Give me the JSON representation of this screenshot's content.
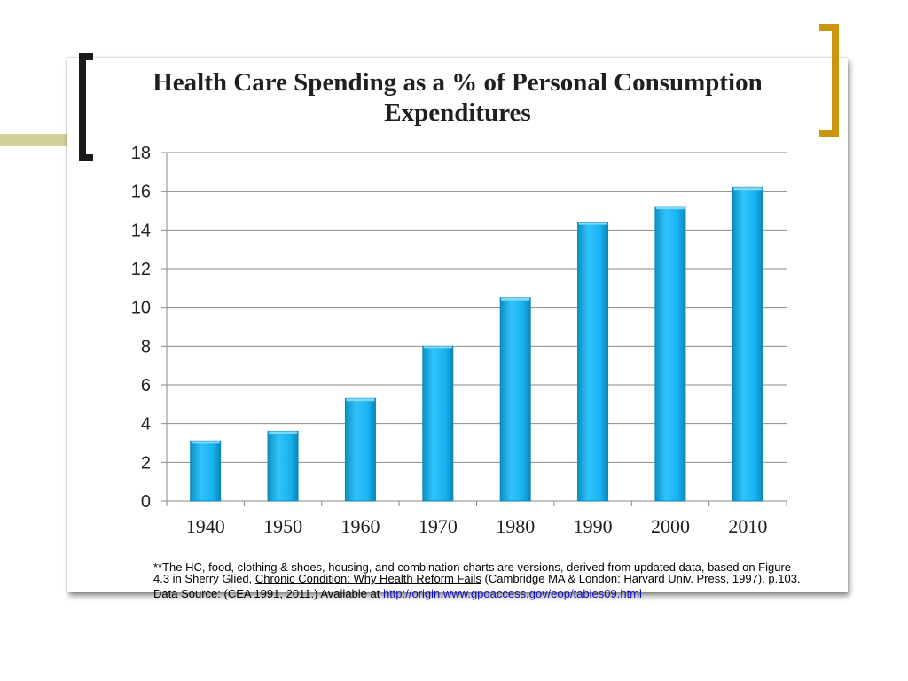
{
  "slide": {
    "title": "Health Care Spending as a % of Personal Consumption Expenditures",
    "accent_color": "#c9960f",
    "bar_color": "#18b0ee"
  },
  "footnote": {
    "line1_a": "**The HC, food, clothing & shoes, housing, and combination charts are versions, derived from updated data, based on Figure 4.3 in Sherry Glied, ",
    "book_title": "Chronic Condition: Why Health Reform Fails",
    "line1_b": " (Cambridge MA & London: Harvard Univ. Press, 1997), p.103.",
    "source_prefix": "Data Source: (CEA 1991, 2011.) Available at ",
    "source_link": "http://origin.www.gpoaccess.gov/eop/tables09.html"
  },
  "chart_data": {
    "type": "bar",
    "title": "Health Care Spending as a % of Personal Consumption Expenditures",
    "categories": [
      "1940",
      "1950",
      "1960",
      "1970",
      "1980",
      "1990",
      "2000",
      "2010"
    ],
    "values": [
      3.1,
      3.6,
      5.3,
      8.0,
      10.5,
      14.4,
      15.2,
      16.2
    ],
    "xlabel": "",
    "ylabel": "",
    "ylim": [
      0,
      18
    ],
    "yticks": [
      "0",
      "2",
      "4",
      "6",
      "8",
      "10",
      "12",
      "14",
      "16",
      "18"
    ],
    "grid": true,
    "legend": "none"
  }
}
